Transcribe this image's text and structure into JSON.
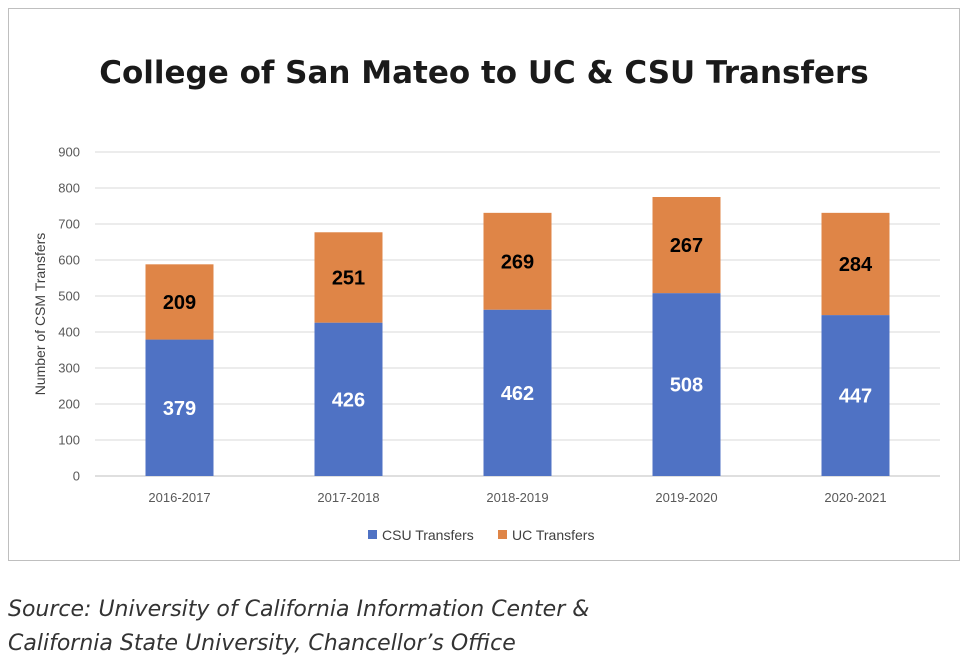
{
  "chart_data": {
    "type": "bar",
    "stacked": true,
    "title": "College of San Mateo to UC & CSU Transfers",
    "ylabel": "Number of CSM Transfers",
    "xlabel": "",
    "ylim": [
      0,
      900
    ],
    "yticks": [
      0,
      100,
      200,
      300,
      400,
      500,
      600,
      700,
      800,
      900
    ],
    "categories": [
      "2016-2017",
      "2017-2018",
      "2018-2019",
      "2019-2020",
      "2020-2021"
    ],
    "series": [
      {
        "name": "CSU Transfers",
        "values": [
          379,
          426,
          462,
          508,
          447
        ],
        "color": "#4f72c4",
        "label_color": "#ffffff"
      },
      {
        "name": "UC Transfers",
        "values": [
          209,
          251,
          269,
          267,
          284
        ],
        "color": "#df8547",
        "label_color": "#000000"
      }
    ],
    "grid": true,
    "legend_position": "bottom"
  },
  "source": {
    "line1": "Source: University of California Information Center &",
    "line2": "California State University, Chancellor’s Office"
  }
}
